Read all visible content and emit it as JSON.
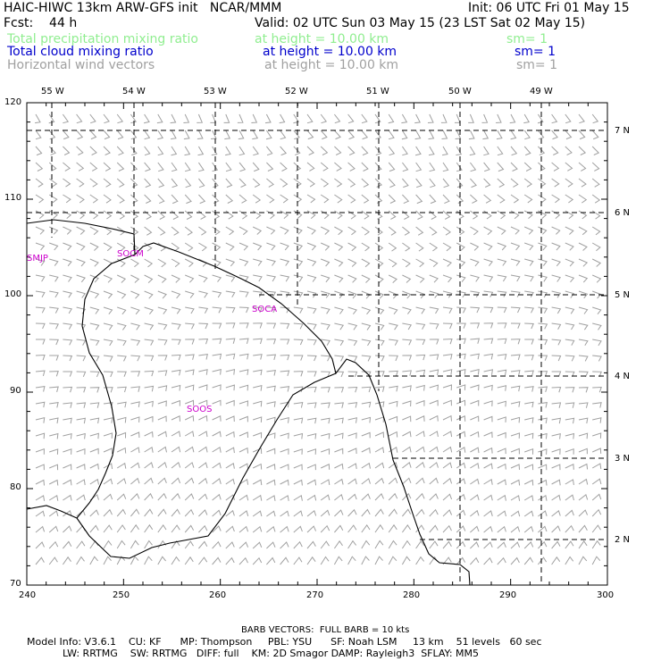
{
  "header": {
    "title_left": "HAIC-HIWC 13km ARW-GFS init   NCAR/MMM",
    "init": "Init: 06 UTC Fri 01 May 15",
    "fcst": "Fcst:    44 h",
    "valid": "Valid: 02 UTC Sun 03 May 15 (23 LST Sat 02 May 15)",
    "fields": [
      {
        "name": "Total precipitation mixing ratio",
        "height": "at height = 10.00 km",
        "sm": "sm= 1",
        "color": "#90ee90"
      },
      {
        "name": "Total cloud mixing ratio",
        "height": "at height = 10.00 km",
        "sm": "sm= 1",
        "color": "#0000cc"
      },
      {
        "name": "Horizontal wind vectors",
        "height": "at height = 10.00 km",
        "sm": "sm= 1",
        "color": "#a0a0a0"
      }
    ]
  },
  "map": {
    "top_lon_labels": [
      "55 W",
      "54 W",
      "53 W",
      "52 W",
      "51 W",
      "50 W",
      "49 W"
    ],
    "right_lat_labels": [
      "7 N",
      "6 N",
      "5 N",
      "4 N",
      "3 N",
      "2 N"
    ],
    "x_ticks": [
      "240",
      "250",
      "260",
      "270",
      "280",
      "290",
      "300"
    ],
    "y_ticks": [
      "120",
      "110",
      "100",
      "90",
      "80",
      "70"
    ],
    "x_range": [
      240,
      300
    ],
    "y_range": [
      70,
      120
    ],
    "station_labels": [
      "SMJP",
      "SOCM",
      "SOCA",
      "SOOS"
    ],
    "station_color": "#cc00cc",
    "barb_color": "#a0a0a0"
  },
  "footer": {
    "barb_note": "BARB VECTORS:  FULL BARB = 10 kts",
    "line1": "Model Info: V3.6.1    CU: KF      MP: Thompson     PBL: YSU      SF: Noah LSM     13 km    51 levels   60 sec",
    "line2": "LW: RRTMG    SW: RRTMG   DIFF: full    KM: 2D Smagor DAMP: Rayleigh3  SFLAY: MM5"
  }
}
